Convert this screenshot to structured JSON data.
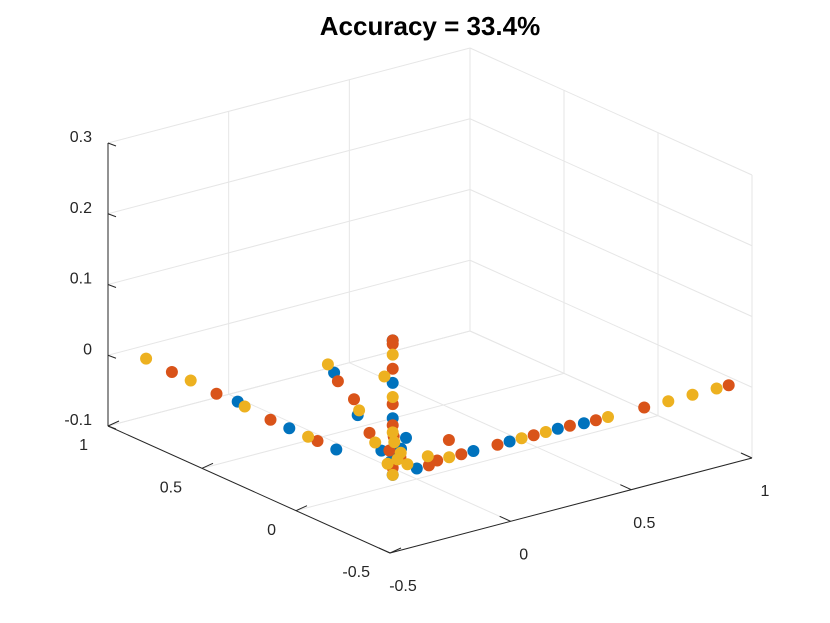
{
  "chart_data": {
    "type": "scatter3d",
    "title": "Accuracy = 33.4%",
    "grid": true,
    "xlim": [
      -0.5,
      1
    ],
    "ylim": [
      -0.5,
      1
    ],
    "zlim": [
      -0.1,
      0.3
    ],
    "xticks": [
      "-0.5",
      "0",
      "0.5",
      "1"
    ],
    "yticks": [
      "-0.5",
      "0",
      "0.5",
      "1"
    ],
    "zticks": [
      "-0.1",
      "0",
      "0.1",
      "0.2",
      "0.3"
    ],
    "colors": [
      "#0072BD",
      "#D95319",
      "#EDB120"
    ],
    "series": [
      {
        "color": "#0072BD",
        "points": [
          [
            -0.45,
            -0.45,
            0.0
          ],
          [
            -0.43,
            -0.44,
            0.02
          ],
          [
            -0.4,
            -0.43,
            0.03
          ],
          [
            -0.42,
            -0.4,
            0.01
          ],
          [
            -0.45,
            -0.45,
            0.08
          ],
          [
            -0.45,
            -0.45,
            0.13
          ],
          [
            -0.45,
            -0.45,
            0.19
          ],
          [
            -0.42,
            -0.1,
            0.1
          ],
          [
            -0.4,
            -0.2,
            0.05
          ],
          [
            -0.38,
            -0.3,
            0.01
          ],
          [
            -0.1,
            -0.43,
            0.0
          ],
          [
            0.05,
            -0.43,
            0.0
          ],
          [
            0.25,
            -0.43,
            0.0
          ],
          [
            0.35,
            -0.44,
            0.0
          ],
          [
            -0.45,
            -0.15,
            0.0
          ],
          [
            -0.45,
            0.1,
            0.0
          ],
          [
            -0.43,
            0.4,
            0.0
          ],
          [
            -0.35,
            -0.45,
            0.0
          ],
          [
            -0.2,
            -0.2,
            0.0
          ]
        ]
      },
      {
        "color": "#D95319",
        "points": [
          [
            -0.45,
            -0.45,
            0.01
          ],
          [
            -0.44,
            -0.42,
            0.03
          ],
          [
            -0.41,
            -0.44,
            0.02
          ],
          [
            -0.43,
            -0.43,
            0.05
          ],
          [
            -0.45,
            -0.45,
            0.07
          ],
          [
            -0.45,
            -0.45,
            0.1
          ],
          [
            -0.45,
            -0.45,
            0.15
          ],
          [
            -0.45,
            -0.45,
            0.185
          ],
          [
            -0.45,
            -0.45,
            0.19
          ],
          [
            -0.42,
            -0.12,
            0.09
          ],
          [
            -0.4,
            -0.18,
            0.07
          ],
          [
            -0.39,
            -0.25,
            0.03
          ],
          [
            -0.25,
            -0.43,
            0.0
          ],
          [
            -0.15,
            -0.43,
            0.0
          ],
          [
            0.0,
            -0.43,
            0.0
          ],
          [
            0.15,
            -0.43,
            0.0
          ],
          [
            0.3,
            -0.43,
            0.0
          ],
          [
            0.4,
            -0.44,
            0.0
          ],
          [
            0.6,
            -0.44,
            0.0
          ],
          [
            0.95,
            -0.44,
            0.0
          ],
          [
            -0.45,
            -0.05,
            0.0
          ],
          [
            -0.45,
            0.2,
            0.0
          ],
          [
            -0.44,
            0.5,
            0.0
          ],
          [
            -0.43,
            0.75,
            0.0
          ],
          [
            -0.3,
            -0.45,
            0.0
          ],
          [
            -0.1,
            -0.3,
            0.0
          ]
        ]
      },
      {
        "color": "#EDB120",
        "points": [
          [
            -0.45,
            -0.45,
            0.0
          ],
          [
            -0.43,
            -0.45,
            0.02
          ],
          [
            -0.42,
            -0.42,
            0.04
          ],
          [
            -0.44,
            -0.41,
            0.01
          ],
          [
            -0.45,
            -0.45,
            0.06
          ],
          [
            -0.45,
            -0.45,
            0.11
          ],
          [
            -0.45,
            -0.45,
            0.17
          ],
          [
            -0.43,
            -0.08,
            0.11
          ],
          [
            -0.41,
            -0.22,
            0.06
          ],
          [
            -0.39,
            -0.28,
            0.02
          ],
          [
            -0.2,
            -0.43,
            0.0
          ],
          [
            0.1,
            -0.43,
            0.0
          ],
          [
            0.2,
            -0.43,
            0.0
          ],
          [
            0.45,
            -0.44,
            0.0
          ],
          [
            0.7,
            -0.44,
            0.0
          ],
          [
            0.8,
            -0.44,
            0.0
          ],
          [
            0.9,
            -0.44,
            0.0
          ],
          [
            -0.45,
            0.0,
            0.0
          ],
          [
            -0.44,
            0.35,
            0.0
          ],
          [
            -0.43,
            0.65,
            0.0
          ],
          [
            -0.42,
            0.9,
            0.0
          ],
          [
            -0.35,
            -0.4,
            0.0
          ],
          [
            -0.3,
            -0.3,
            0.0
          ],
          [
            0.1,
            0.3,
            0.0
          ],
          [
            -0.25,
            -0.38,
            0.0
          ]
        ]
      }
    ]
  }
}
